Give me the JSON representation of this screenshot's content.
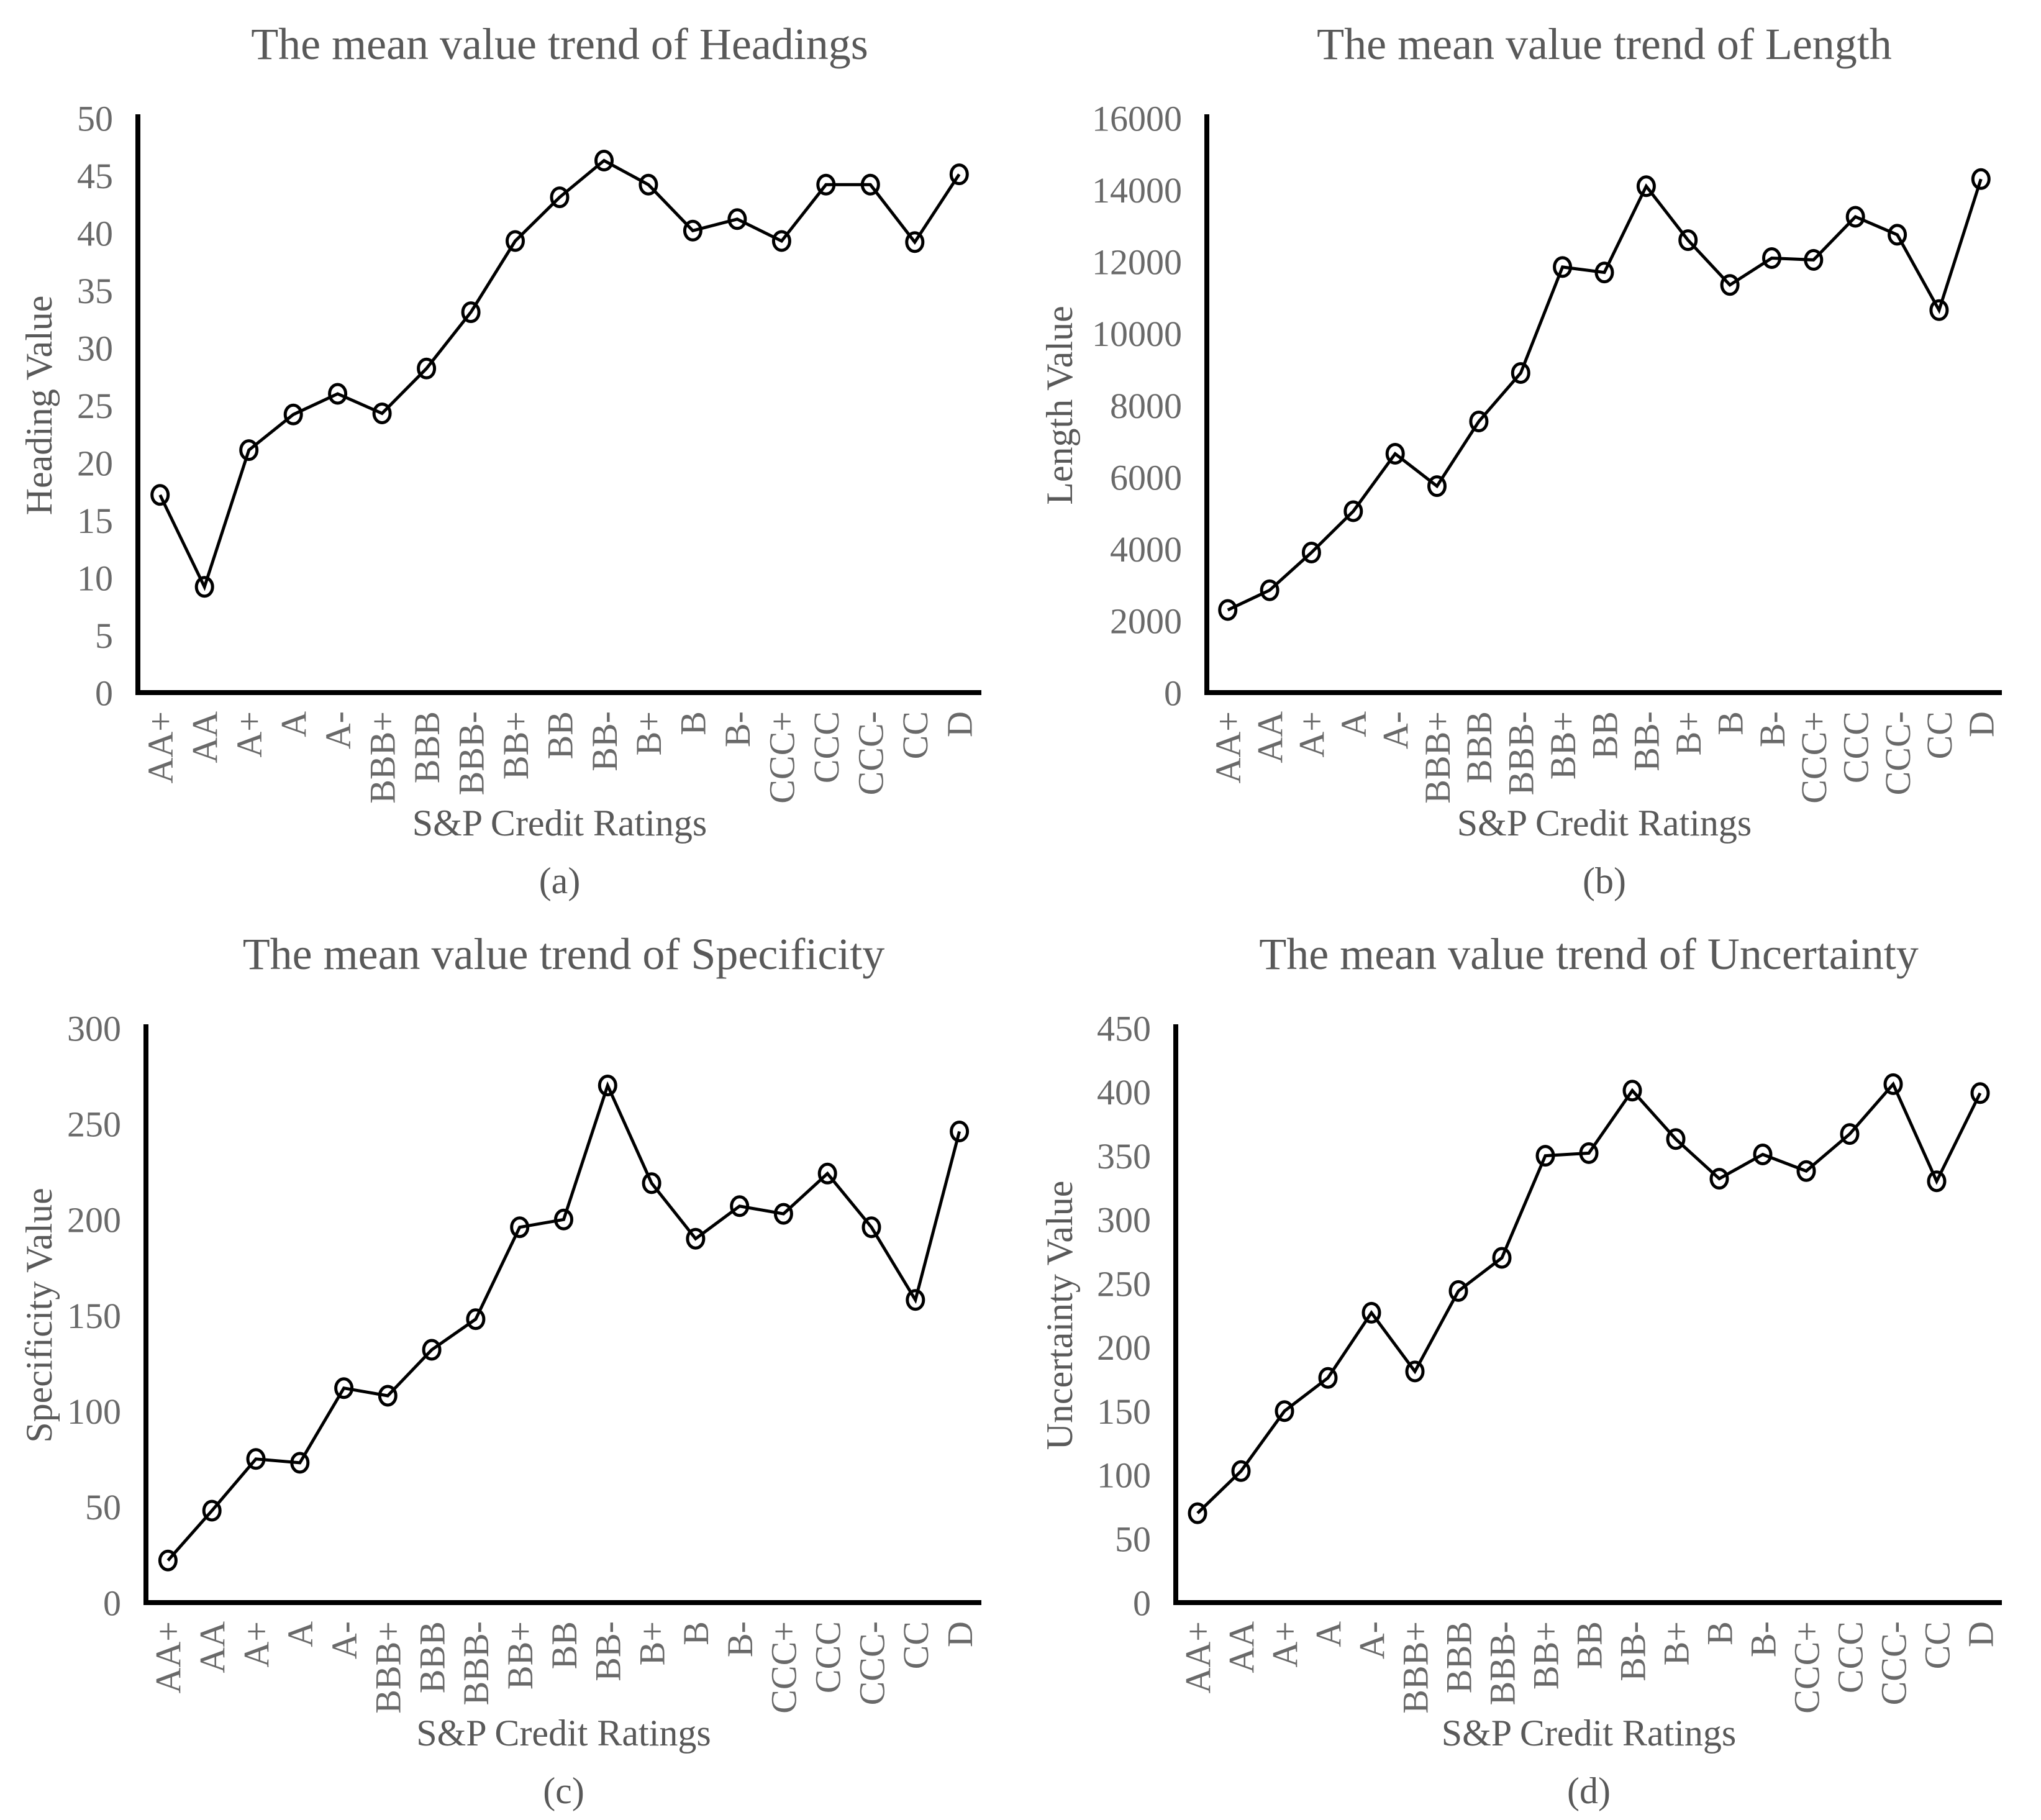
{
  "figure": {
    "x_axis_label": "S&P Credit Ratings",
    "text_color": "#595959",
    "tick_color": "#696969",
    "line_color": "#000000",
    "background": "#ffffff"
  },
  "chart_data": [
    {
      "type": "line",
      "panel": "(a)",
      "title": "The mean value trend of Headings",
      "xlabel": "S&P Credit Ratings",
      "ylabel": "Heading Value",
      "categories": [
        "AA+",
        "AA",
        "A+",
        "A",
        "A-",
        "BBB+",
        "BBB",
        "BBB-",
        "BB+",
        "BB",
        "BB-",
        "B+",
        "B",
        "B-",
        "CCC+",
        "CCC",
        "CCC-",
        "CC",
        "D"
      ],
      "values": [
        17.2,
        9.2,
        21.1,
        24.2,
        26.0,
        24.3,
        28.2,
        33.1,
        39.3,
        43.1,
        46.3,
        44.2,
        40.2,
        41.2,
        39.3,
        44.2,
        44.2,
        39.2,
        45.1
      ],
      "ylim": [
        0,
        50
      ],
      "yticks": [
        0,
        5,
        10,
        15,
        20,
        25,
        30,
        35,
        40,
        45,
        50
      ],
      "grid": false,
      "legend": false,
      "marker": "open-circle",
      "line_color": "#000000"
    },
    {
      "type": "line",
      "panel": "(b)",
      "title": "The mean value trend of Length",
      "xlabel": "S&P Credit Ratings",
      "ylabel": "Length Value",
      "categories": [
        "AA+",
        "AA",
        "A+",
        "A",
        "A-",
        "BBB+",
        "BBB",
        "BBB-",
        "BB+",
        "BB",
        "BB-",
        "B+",
        "B",
        "B-",
        "CCC+",
        "CCC",
        "CCC-",
        "CC",
        "D"
      ],
      "values": [
        2300,
        2850,
        3900,
        5050,
        6650,
        5750,
        7550,
        8900,
        11850,
        11700,
        14100,
        12600,
        11350,
        12100,
        12050,
        13250,
        12750,
        10650,
        14300
      ],
      "ylim": [
        0,
        16000
      ],
      "yticks": [
        0,
        2000,
        4000,
        6000,
        8000,
        10000,
        12000,
        14000,
        16000
      ],
      "grid": false,
      "legend": false,
      "marker": "open-circle",
      "line_color": "#000000"
    },
    {
      "type": "line",
      "panel": "(c)",
      "title": "The mean value trend of Specificity",
      "xlabel": "S&P Credit Ratings",
      "ylabel": "Specificity Value",
      "categories": [
        "AA+",
        "AA",
        "A+",
        "A",
        "A-",
        "BBB+",
        "BBB",
        "BBB-",
        "BB+",
        "BB",
        "BB-",
        "B+",
        "B",
        "B-",
        "CCC+",
        "CCC",
        "CCC-",
        "CC",
        "D"
      ],
      "values": [
        22,
        48,
        75,
        73,
        112,
        108,
        132,
        148,
        196,
        200,
        270,
        219,
        190,
        207,
        203,
        224,
        196,
        158,
        246
      ],
      "ylim": [
        0,
        300
      ],
      "yticks": [
        0,
        50,
        100,
        150,
        200,
        250,
        300
      ],
      "grid": false,
      "legend": false,
      "marker": "open-circle",
      "line_color": "#000000"
    },
    {
      "type": "line",
      "panel": "(d)",
      "title": "The mean value trend of Uncertainty",
      "xlabel": "S&P Credit Ratings",
      "ylabel": "Uncertainty Value",
      "categories": [
        "AA+",
        "AA",
        "A+",
        "A",
        "A-",
        "BBB+",
        "BBB",
        "BBB-",
        "BB+",
        "BB",
        "BB-",
        "B+",
        "B",
        "B-",
        "CCC+",
        "CCC",
        "CCC-",
        "CC",
        "D"
      ],
      "values": [
        70,
        103,
        150,
        176,
        227,
        181,
        244,
        270,
        350,
        352,
        401,
        363,
        332,
        351,
        338,
        367,
        406,
        330,
        399
      ],
      "ylim": [
        0,
        450
      ],
      "yticks": [
        0,
        50,
        100,
        150,
        200,
        250,
        300,
        350,
        400,
        450
      ],
      "grid": false,
      "legend": false,
      "marker": "open-circle",
      "line_color": "#000000"
    }
  ]
}
